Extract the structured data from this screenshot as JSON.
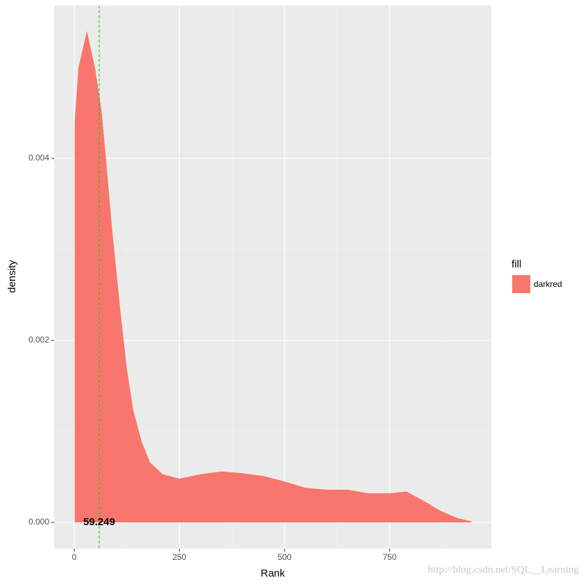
{
  "chart_data": {
    "type": "density",
    "x_label": "Rank",
    "y_label": "density",
    "x": [
      1,
      10,
      30,
      50,
      65,
      75,
      90,
      110,
      125,
      140,
      160,
      180,
      210,
      250,
      300,
      350,
      400,
      450,
      500,
      550,
      600,
      650,
      700,
      750,
      790,
      830,
      870,
      910,
      945
    ],
    "series": [
      {
        "name": "darkred",
        "color": "#F8766D",
        "values": [
          0.0044,
          0.005,
          0.0054,
          0.00498,
          0.00452,
          0.00402,
          0.00322,
          0.00231,
          0.00169,
          0.00124,
          0.00089,
          0.00066,
          0.00053,
          0.00048,
          0.00053,
          0.00056,
          0.00054,
          0.00051,
          0.00045,
          0.00038,
          0.00036,
          0.00036,
          0.00032,
          0.00032,
          0.00034,
          0.00024,
          0.00013,
          5e-05,
          1e-05
        ]
      }
    ],
    "legend_title": "fill",
    "vline": {
      "x": 59.249,
      "color": "#00d000"
    },
    "annotation": {
      "text": "59.249",
      "x": 59.249,
      "y": 0
    },
    "xlim": [
      -47.9,
      992
    ],
    "ylim": [
      -0.00029,
      0.00568
    ],
    "xticks": [
      0,
      250,
      500,
      750
    ],
    "yticks": [
      {
        "value": 0,
        "label": "0.000"
      },
      {
        "value": 0.002,
        "label": "0.002"
      },
      {
        "value": 0.004,
        "label": "0.004"
      }
    ],
    "minor_xticks": [
      125,
      375,
      625,
      875
    ],
    "minor_yticks": [
      0.001,
      0.003,
      0.005
    ],
    "grid": true,
    "watermark": "http://blog.csdn.net/SQL__Learning"
  }
}
